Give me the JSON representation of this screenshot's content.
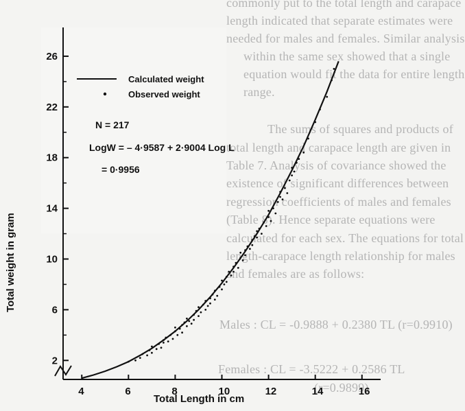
{
  "background_text": [
    "commonly put to the total length and carapace",
    "length indicated that separate estimates were",
    "needed for males and females. Similar analysis",
    "within the same sex showed that a single",
    "equation would fit the data for entire length",
    "range.",
    "The sums of squares and products of",
    "total length and carapace length are given in",
    "Table 7. Analysis of covariance showed the",
    "existence of significant differences between",
    "regression coefficients of males and females",
    "(Table 8). Hence separate equations were",
    "calculated for each sex. The equations for total",
    "length-carapace length relationship for males",
    "and females are as follows:",
    "Males : CL = -0.9888 + 0.2380 TL (r=0.9910)",
    "Females : CL = -3.5222 + 0.2586 TL",
    "(r=0.9899)"
  ],
  "chart_data": {
    "type": "scatter",
    "xlabel": "Total Length in cm",
    "ylabel": "Total weight in gram",
    "xlim": [
      3.2,
      16.8
    ],
    "ylim": [
      0.5,
      28
    ],
    "x_ticks": [
      "4",
      "6",
      "8",
      "10",
      "12",
      "14",
      "16"
    ],
    "y_ticks": [
      "2",
      "6",
      "10",
      "14",
      "18",
      "22",
      "26"
    ],
    "legend": {
      "position": "top-left",
      "entries": [
        {
          "label": "Calculated weight",
          "marker": "line"
        },
        {
          "label": "Observed weight",
          "marker": "dot"
        }
      ]
    },
    "annotations": {
      "n": "N = 217",
      "equation": "LogW = – 4·9587 + 2·9004 Log L",
      "r": "= 0·9956"
    },
    "calculated_curve": {
      "name": "Calculated weight",
      "log10_a": -4.9587,
      "b": 2.9004,
      "x": [
        4.0,
        4.5,
        5.0,
        5.5,
        6.0,
        6.5,
        7.0,
        7.5,
        8.0,
        8.5,
        9.0,
        9.5,
        10.0,
        10.5,
        11.0,
        11.5,
        12.0,
        12.5,
        13.0,
        13.5,
        14.0,
        14.5,
        15.0
      ],
      "y": [
        0.6,
        0.85,
        1.15,
        1.5,
        1.9,
        2.4,
        2.95,
        3.6,
        4.3,
        5.1,
        6.0,
        7.0,
        8.1,
        9.3,
        10.6,
        12.0,
        13.5,
        15.2,
        17.0,
        18.9,
        21.0,
        23.2,
        25.6
      ]
    },
    "observed": {
      "name": "Observed weight",
      "points": [
        [
          6.0,
          1.9
        ],
        [
          6.3,
          2.0
        ],
        [
          6.5,
          2.2
        ],
        [
          6.6,
          2.5
        ],
        [
          6.8,
          2.4
        ],
        [
          6.9,
          2.8
        ],
        [
          7.0,
          2.6
        ],
        [
          7.0,
          3.1
        ],
        [
          7.2,
          2.9
        ],
        [
          7.3,
          3.3
        ],
        [
          7.4,
          3.0
        ],
        [
          7.5,
          3.6
        ],
        [
          7.5,
          3.4
        ],
        [
          7.6,
          3.8
        ],
        [
          7.7,
          3.5
        ],
        [
          7.8,
          4.0
        ],
        [
          7.9,
          3.7
        ],
        [
          8.0,
          4.3
        ],
        [
          8.0,
          4.6
        ],
        [
          8.1,
          4.0
        ],
        [
          8.2,
          4.5
        ],
        [
          8.3,
          4.8
        ],
        [
          8.3,
          4.2
        ],
        [
          8.4,
          5.0
        ],
        [
          8.5,
          4.7
        ],
        [
          8.5,
          5.3
        ],
        [
          8.6,
          5.1
        ],
        [
          8.7,
          4.9
        ],
        [
          8.8,
          5.6
        ],
        [
          8.8,
          5.2
        ],
        [
          8.9,
          5.9
        ],
        [
          9.0,
          5.5
        ],
        [
          9.0,
          6.2
        ],
        [
          9.1,
          5.8
        ],
        [
          9.2,
          6.4
        ],
        [
          9.3,
          6.0
        ],
        [
          9.3,
          6.7
        ],
        [
          9.4,
          6.3
        ],
        [
          9.5,
          6.9
        ],
        [
          9.5,
          6.5
        ],
        [
          9.6,
          7.2
        ],
        [
          9.7,
          6.8
        ],
        [
          9.7,
          7.5
        ],
        [
          9.8,
          7.1
        ],
        [
          9.9,
          7.8
        ],
        [
          10.0,
          7.6
        ],
        [
          10.0,
          8.3
        ],
        [
          10.1,
          8.0
        ],
        [
          10.2,
          8.6
        ],
        [
          10.2,
          8.2
        ],
        [
          10.3,
          9.0
        ],
        [
          10.4,
          8.7
        ],
        [
          10.5,
          9.4
        ],
        [
          10.5,
          9.0
        ],
        [
          10.6,
          9.7
        ],
        [
          10.7,
          9.3
        ],
        [
          10.8,
          10.1
        ],
        [
          10.8,
          10.5
        ],
        [
          10.9,
          9.9
        ],
        [
          11.0,
          10.7
        ],
        [
          11.0,
          10.3
        ],
        [
          11.1,
          11.0
        ],
        [
          11.2,
          10.8
        ],
        [
          11.3,
          11.5
        ],
        [
          11.3,
          11.1
        ],
        [
          11.4,
          11.8
        ],
        [
          11.5,
          12.2
        ],
        [
          11.5,
          11.7
        ],
        [
          11.6,
          12.4
        ],
        [
          11.7,
          12.0
        ],
        [
          11.8,
          12.9
        ],
        [
          11.9,
          12.6
        ],
        [
          12.0,
          13.3
        ],
        [
          12.0,
          13.8
        ],
        [
          12.1,
          13.0
        ],
        [
          12.2,
          14.0
        ],
        [
          12.3,
          13.6
        ],
        [
          12.4,
          14.5
        ],
        [
          12.5,
          14.9
        ],
        [
          12.5,
          15.3
        ],
        [
          12.6,
          14.7
        ],
        [
          12.7,
          15.6
        ],
        [
          12.8,
          15.2
        ],
        [
          12.9,
          16.2
        ],
        [
          13.0,
          16.6
        ],
        [
          13.0,
          17.2
        ],
        [
          13.1,
          16.9
        ],
        [
          13.2,
          17.6
        ],
        [
          13.3,
          17.9
        ],
        [
          13.5,
          18.4
        ],
        [
          13.7,
          19.5
        ],
        [
          14.0,
          20.8
        ],
        [
          14.2,
          21.8
        ],
        [
          14.5,
          22.8
        ],
        [
          14.7,
          24.1
        ],
        [
          14.8,
          25.0
        ]
      ]
    }
  }
}
